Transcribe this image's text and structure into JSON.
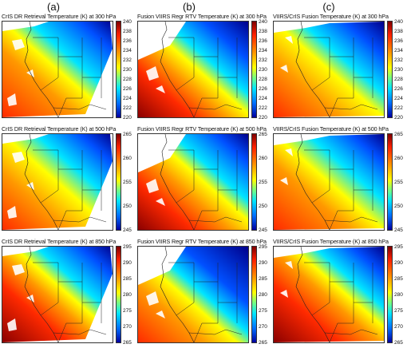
{
  "columns": [
    "(a)",
    "(b)",
    "(c)"
  ],
  "panels": [
    [
      {
        "title": "CrIS DR Retrieval Temperature (K) at 300 hPa",
        "ticks": [
          "240",
          "238",
          "236",
          "234",
          "232",
          "230",
          "228",
          "226",
          "224",
          "222",
          "220"
        ],
        "pattern": "a1"
      },
      {
        "title": "CrIS DR Retrieval Temperature (K) at 500 hPa",
        "ticks": [
          "265",
          "260",
          "255",
          "250",
          "245"
        ],
        "pattern": "a2"
      },
      {
        "title": "CrIS DR Retrieval Temperature (K) at 850 hPa",
        "ticks": [
          "295",
          "290",
          "285",
          "280",
          "275",
          "270",
          "265"
        ],
        "pattern": "a3"
      }
    ],
    [
      {
        "title": "Fusion VIIRS Regr RTV Temperature (K) at 300 hPa",
        "ticks": [
          "240",
          "238",
          "236",
          "234",
          "232",
          "230",
          "228",
          "226",
          "224",
          "222",
          "220"
        ],
        "pattern": "b1"
      },
      {
        "title": "Fusion VIIRS Regr RTV Temperature (K) at 500 hPa",
        "ticks": [
          "265",
          "260",
          "255",
          "250",
          "245"
        ],
        "pattern": "b2"
      },
      {
        "title": "Fusion VIIRS Regr RTV Temperature (K) at 850 hPa",
        "ticks": [
          "295",
          "290",
          "285",
          "280",
          "275",
          "270",
          "265"
        ],
        "pattern": "b3"
      }
    ],
    [
      {
        "title": "VIIRS/CrIS Fusion Temperature (K) at 300 hPa",
        "ticks": [
          "240",
          "238",
          "236",
          "234",
          "232",
          "230",
          "228",
          "226",
          "224",
          "222",
          "220"
        ],
        "pattern": "c1"
      },
      {
        "title": "VIIRS/CrIS Fusion Temperature (K) at 500 hPa",
        "ticks": [
          "265",
          "260",
          "255",
          "250",
          "245"
        ],
        "pattern": "c2"
      },
      {
        "title": "VIIRS/CrIS Fusion Temperature (K) at 850 hPa",
        "ticks": [
          "295",
          "290",
          "285",
          "280",
          "275",
          "270",
          "265"
        ],
        "pattern": "c3"
      }
    ]
  ],
  "colors": {
    "dark_red": "#8b0000",
    "red": "#ff2a00",
    "orange": "#ff9900",
    "yellow": "#ffff00",
    "cyan": "#00e5ff",
    "blue": "#0050ff",
    "navy": "#00008b"
  }
}
